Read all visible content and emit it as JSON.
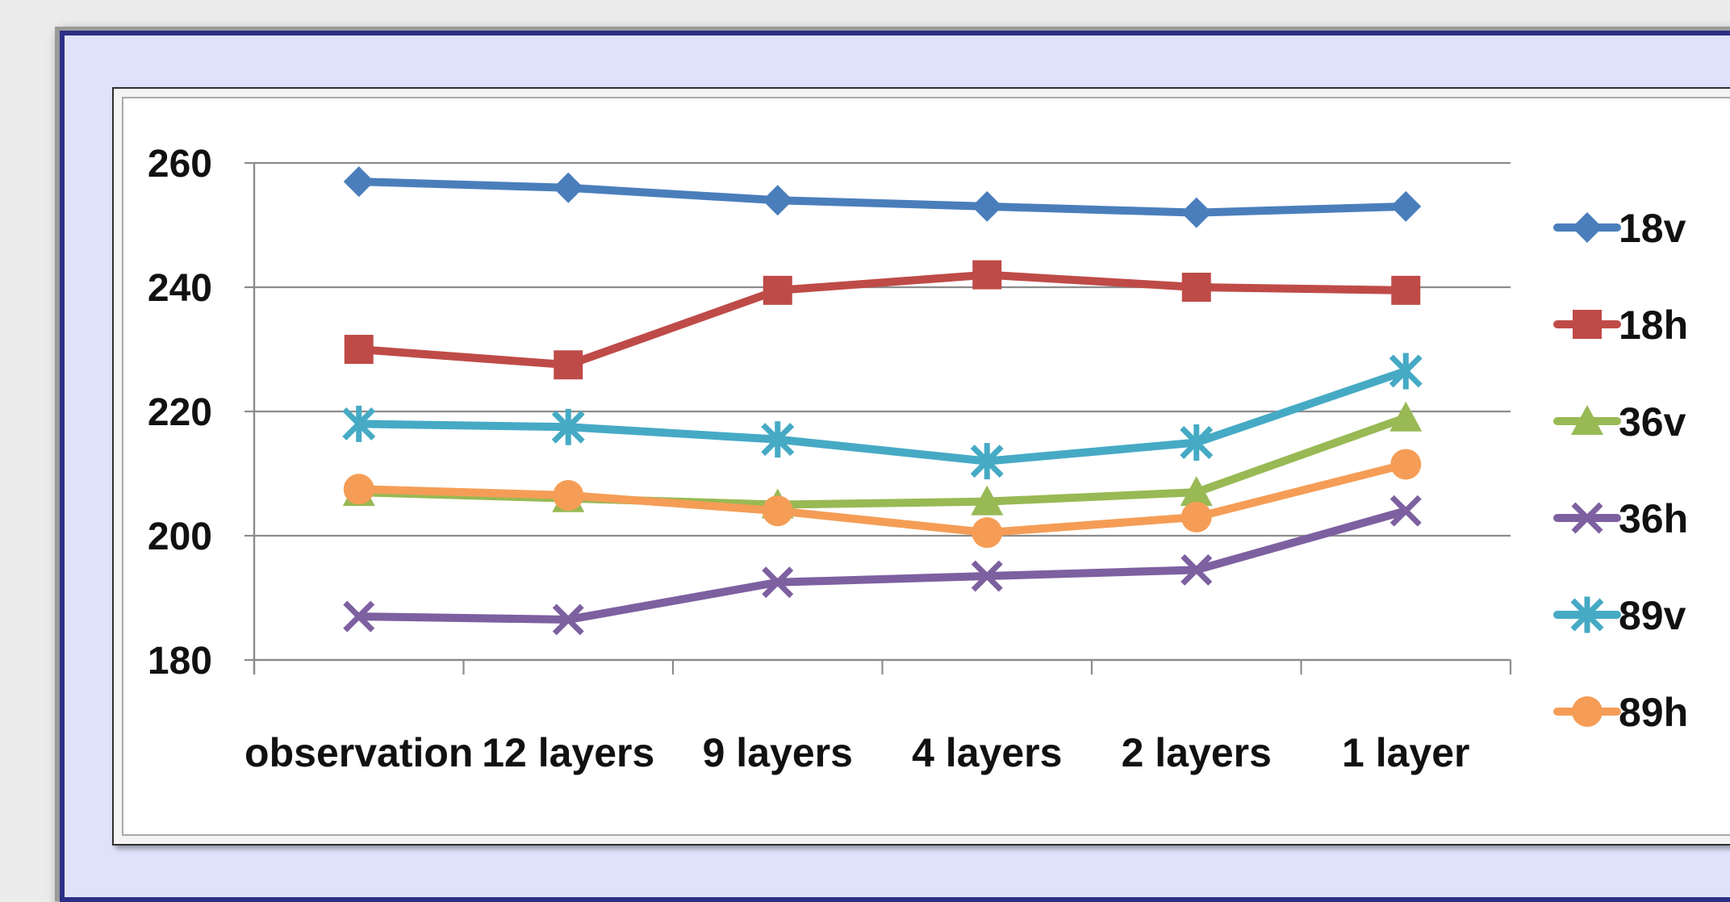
{
  "chart_data": {
    "type": "line",
    "title": "",
    "xlabel": "",
    "ylabel": "",
    "categories": [
      "observation",
      "12 layers",
      "9 layers",
      "4 layers",
      "2 layers",
      "1 layer"
    ],
    "ylim": [
      180,
      260
    ],
    "yticks": [
      "180",
      "200",
      "220",
      "240",
      "260"
    ],
    "grid": true,
    "legend": "right",
    "series": [
      {
        "name": "18v",
        "color": "#4a7ebb",
        "marker": "diamond",
        "values": [
          257,
          256,
          254,
          253,
          252,
          253
        ]
      },
      {
        "name": "18h",
        "color": "#be4b48",
        "marker": "square",
        "values": [
          230,
          227.5,
          239.5,
          242,
          240,
          239.5
        ]
      },
      {
        "name": "36v",
        "color": "#98b954",
        "marker": "triangle",
        "values": [
          207,
          206,
          205,
          205.5,
          207,
          219
        ]
      },
      {
        "name": "36h",
        "color": "#7d60a0",
        "marker": "x",
        "values": [
          187,
          186.5,
          192.5,
          193.5,
          194.5,
          204
        ]
      },
      {
        "name": "89v",
        "color": "#46aac5",
        "marker": "star",
        "values": [
          218,
          217.5,
          215.5,
          212,
          215,
          226.5
        ]
      },
      {
        "name": "89h",
        "color": "#f59d56",
        "marker": "circle",
        "values": [
          207.5,
          206.5,
          204,
          200.5,
          203,
          211.5
        ]
      }
    ]
  }
}
